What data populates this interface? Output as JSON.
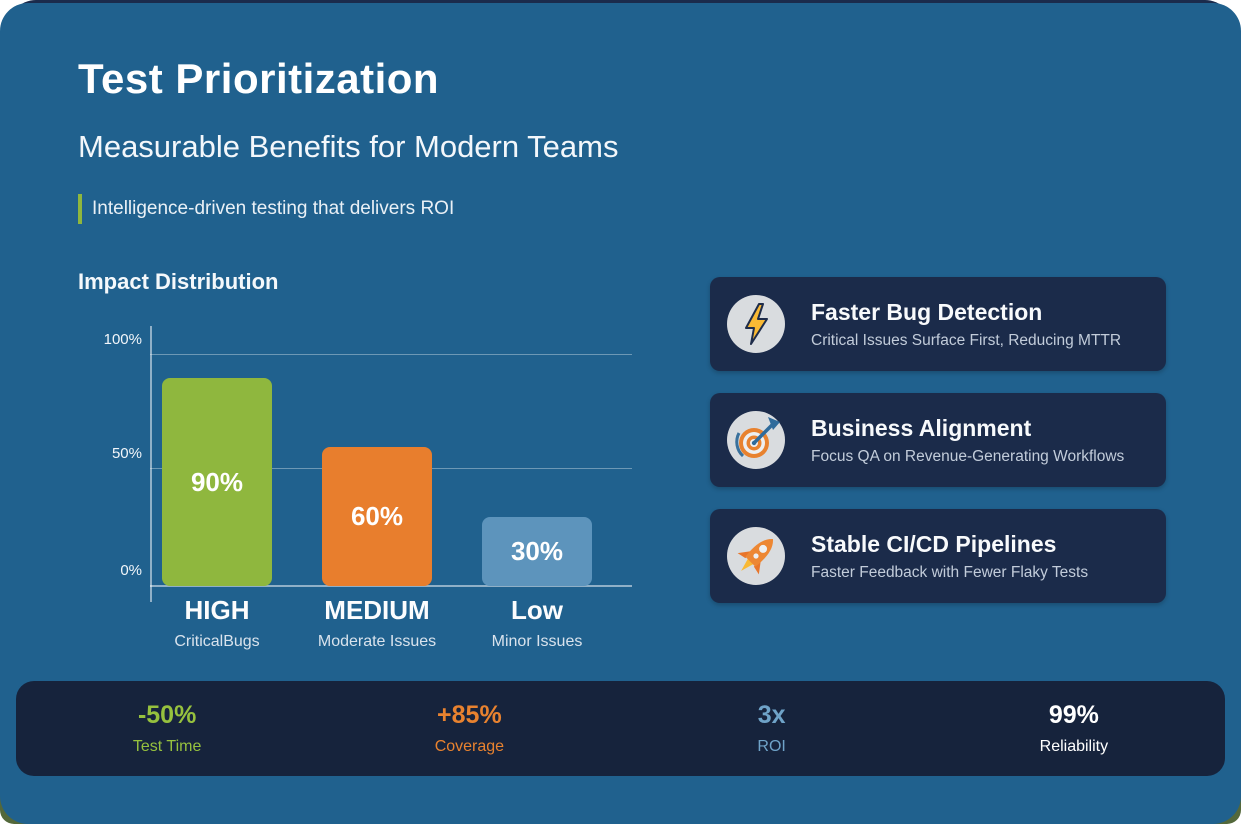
{
  "slide": {
    "title": "Test Prioritization",
    "subtitle": "Measurable Benefits for Modern Teams",
    "tagline": "Intelligence-driven testing that delivers ROI"
  },
  "chart_data": {
    "type": "bar",
    "title": "Impact Distribution",
    "categories": [
      "HIGH",
      "MEDIUM",
      "Low"
    ],
    "category_sublabels": [
      "CriticalBugs",
      "Moderate Issues",
      "Minor Issues"
    ],
    "values": [
      90,
      60,
      30
    ],
    "value_labels": [
      "90%",
      "60%",
      "30%"
    ],
    "bar_colors": [
      "#8FB73E",
      "#E87E2D",
      "#5D94BC"
    ],
    "y_ticks": [
      "0%",
      "50%",
      "100%"
    ],
    "ylim": [
      0,
      100
    ],
    "grid": true,
    "xlabel": "",
    "ylabel": ""
  },
  "benefits": [
    {
      "icon": "lightning-icon",
      "title": "Faster Bug Detection",
      "description": "Critical Issues Surface First, Reducing MTTR"
    },
    {
      "icon": "target-icon",
      "title": "Business Alignment",
      "description": "Focus QA on Revenue-Generating Workflows"
    },
    {
      "icon": "rocket-icon",
      "title": "Stable CI/CD Pipelines",
      "description": "Faster Feedback with Fewer Flaky Tests"
    }
  ],
  "stats": [
    {
      "value": "-50%",
      "label": "Test Time",
      "color": "#96C13E"
    },
    {
      "value": "+85%",
      "label": "Coverage",
      "color": "#E8822F"
    },
    {
      "value": "3x",
      "label": "ROI",
      "color": "#6FA3C8"
    },
    {
      "value": "99%",
      "label": "Reliability",
      "color": "#FFFFFF"
    }
  ],
  "colors": {
    "background": "#20618E",
    "card_navy": "#1B2B4A",
    "stats_navy": "#16233C",
    "accent_green": "#8FB73E",
    "back_layer_navy": "#1B2B4C",
    "back_layer_green": "#53683B"
  }
}
